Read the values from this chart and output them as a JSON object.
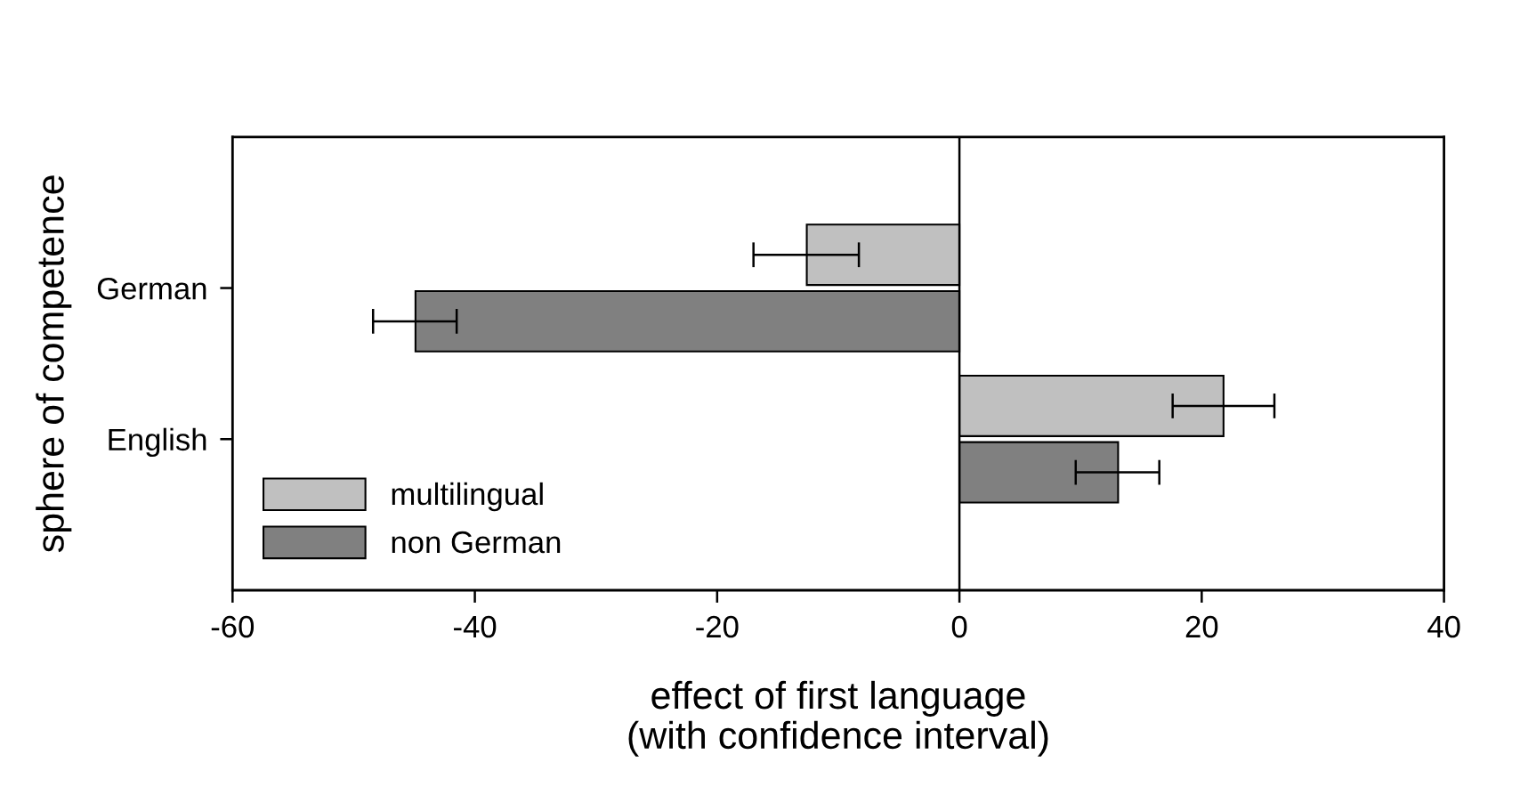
{
  "chart_data": {
    "type": "bar",
    "orientation": "horizontal",
    "xlabel": "effect of first language\n(with confidence interval)",
    "ylabel": "sphere of competence",
    "categories": [
      "German",
      "English"
    ],
    "series": [
      {
        "name": "multilingual",
        "color": "#c0c0c0",
        "values": [
          -12.6,
          21.8
        ],
        "errors": [
          [
            -17.0,
            -8.3
          ],
          [
            17.6,
            26.0
          ]
        ]
      },
      {
        "name": "non German",
        "color": "#808080",
        "values": [
          -44.9,
          13.1
        ],
        "errors": [
          [
            -48.4,
            -41.5
          ],
          [
            9.6,
            16.5
          ]
        ]
      }
    ],
    "xlim": [
      -60,
      40
    ],
    "xticks": [
      -60,
      -40,
      -20,
      0,
      20,
      40
    ],
    "ref_lines": [
      {
        "axis": "x",
        "value": 0,
        "color": "#000000"
      }
    ],
    "grid": false,
    "legend": "bottom left"
  }
}
